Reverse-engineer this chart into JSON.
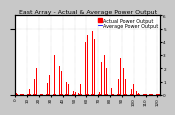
{
  "title": "East Array - Actual & Average Power Output",
  "legend_actual": "Actual Power Output",
  "legend_avg": "Average Power Output",
  "bg_color": "#c8c8c8",
  "plot_bg_color": "#ffffff",
  "bar_color": "#ff0000",
  "avg_line_color": "#ff4444",
  "grid_color": "#aaaaaa",
  "title_color": "#000000",
  "legend_actual_color": "#ff0000",
  "legend_avg_color": "#0000ff",
  "ylim_max": 6.0,
  "ylabel_right_vals": [
    "0",
    "1",
    "2",
    "3",
    "4",
    "5",
    "6"
  ],
  "title_fontsize": 4.5,
  "tick_fontsize": 3.0,
  "legend_fontsize": 3.5,
  "bar_heights": [
    0.05,
    0.1,
    0.05,
    0.08,
    0.05,
    0.06,
    0.05,
    0.05,
    0.08,
    0.06,
    0.05,
    0.05,
    0.4,
    0.05,
    0.8,
    0.05,
    1.2,
    0.05,
    2.0,
    0.05,
    1.8,
    0.05,
    0.05,
    0.05,
    0.05,
    0.3,
    0.05,
    0.9,
    0.05,
    1.5,
    0.05,
    2.5,
    0.05,
    3.0,
    0.05,
    2.8,
    0.05,
    2.2,
    0.05,
    1.8,
    0.05,
    0.5,
    0.05,
    1.0,
    0.05,
    0.8,
    0.05,
    0.4,
    0.05,
    0.3,
    0.05,
    0.2,
    0.05,
    0.15,
    0.05,
    0.8,
    0.05,
    3.5,
    0.05,
    4.0,
    0.05,
    4.5,
    0.05,
    5.0,
    0.05,
    4.8,
    0.05,
    4.2,
    0.05,
    3.5,
    0.05,
    0.2,
    0.05,
    2.5,
    0.05,
    3.0,
    0.05,
    2.0,
    0.05,
    1.5,
    0.05,
    0.5,
    0.05,
    0.05,
    0.05,
    0.6,
    0.05,
    1.2,
    0.05,
    2.8,
    0.05,
    2.0,
    0.05,
    1.2,
    0.05,
    0.5,
    0.05,
    0.05,
    0.4,
    0.05,
    0.8,
    0.05,
    0.3,
    0.05,
    0.1,
    0.05,
    0.05,
    0.05,
    0.05,
    0.05,
    0.05,
    0.05,
    0.05,
    0.05,
    0.05,
    0.05,
    0.05,
    0.05,
    0.05,
    0.05,
    0.05,
    0.05,
    0.05
  ]
}
